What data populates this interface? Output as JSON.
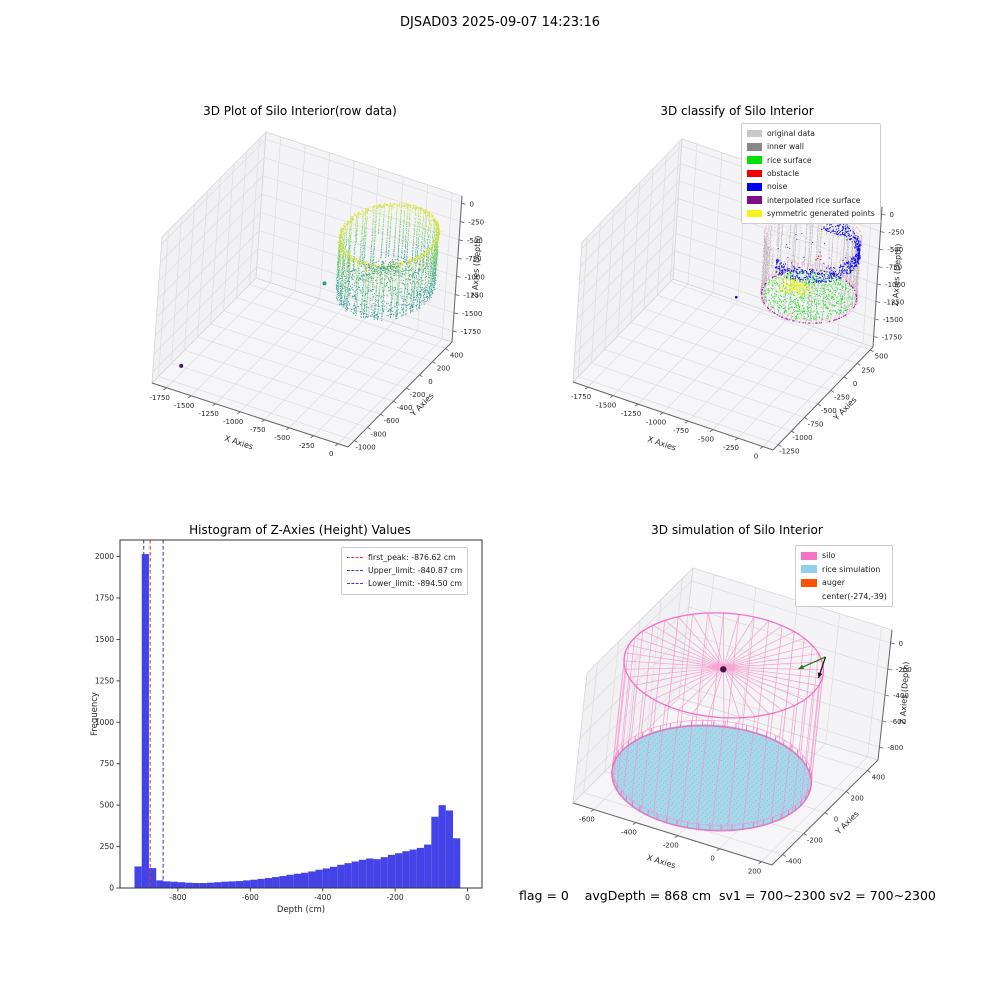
{
  "figure": {
    "title": "DJSAD03 2025-09-07 14:23:16",
    "footer": "flag = 0    avgDepth = 868 cm  sv1 = 700~2300 sv2 = 700~2300"
  },
  "chart_data": [
    {
      "id": "raw",
      "type": "scatter3d",
      "title": "3D Plot of Silo Interior(row data)",
      "xlabel": "X Axies",
      "ylabel": "Y Axies",
      "zlabel": "Z Axies (Depth)",
      "xlim": [
        -1900,
        100
      ],
      "ylim": [
        -1100,
        500
      ],
      "zlim": [
        -1900,
        100
      ],
      "xticks": [
        -1750,
        -1500,
        -1250,
        -1000,
        -750,
        -500,
        -250,
        0
      ],
      "yticks": [
        -1000,
        -800,
        -600,
        -400,
        -200,
        0,
        200,
        400
      ],
      "zticks": [
        0,
        -250,
        -500,
        -750,
        -1000,
        -1250,
        -1500,
        -1750
      ],
      "colormap": "viridis",
      "cmap_range": [
        -1750,
        0
      ],
      "cylinder": {
        "cx": -274,
        "cy": -39,
        "r": 420,
        "z_top": -90,
        "z_bottom": -870
      },
      "outliers": [
        {
          "x": -1650,
          "y": -1050,
          "z": -1600,
          "color": "#46155e"
        },
        {
          "x": -760,
          "y": -250,
          "z": -800,
          "color": "#2e9e87"
        }
      ]
    },
    {
      "id": "classify",
      "type": "scatter3d",
      "title": "3D classify of Silo Interior",
      "xlabel": "X Axies",
      "ylabel": "Y Axies",
      "zlabel": "Z Axies (Depth)",
      "xlim": [
        -1900,
        100
      ],
      "ylim": [
        -1350,
        550
      ],
      "zlim": [
        -1900,
        100
      ],
      "xticks": [
        -1750,
        -1500,
        -1250,
        -1000,
        -750,
        -500,
        -250,
        0
      ],
      "yticks": [
        -1250,
        -1000,
        -750,
        -500,
        -250,
        0,
        250,
        500
      ],
      "zticks": [
        0,
        -250,
        -500,
        -750,
        -1000,
        -1250,
        -1500,
        -1750
      ],
      "legend": [
        {
          "label": "original data",
          "color": "#c8c8c8"
        },
        {
          "label": "inner wall",
          "color": "#888888"
        },
        {
          "label": "rice surface",
          "color": "#00e100"
        },
        {
          "label": "obstacle",
          "color": "#f10000"
        },
        {
          "label": "noise",
          "color": "#0202f0"
        },
        {
          "label": "interpolated rice surface",
          "color": "#7d0f8a"
        },
        {
          "label": "symmetric generated points",
          "color": "#f7f218"
        }
      ],
      "cylinder": {
        "cx": -274,
        "cy": -39,
        "r": 420,
        "z_top": -60,
        "z_bottom": -885
      },
      "noise_outlier": {
        "x": -576,
        "y": -892,
        "z": -400
      }
    },
    {
      "id": "histogram",
      "type": "bar",
      "title": "Histogram of Z-Axies (Height) Values",
      "xlabel": "Depth (cm)",
      "ylabel": "Frequency",
      "xlim": [
        -960,
        40
      ],
      "ylim": [
        0,
        2100
      ],
      "xticks": [
        -800,
        -600,
        -400,
        -200,
        0
      ],
      "yticks": [
        0,
        250,
        500,
        750,
        1000,
        1250,
        1500,
        1750,
        2000
      ],
      "bar_color": "#4343e8",
      "bin_width": 20,
      "bin_start": -920,
      "frequencies": [
        130,
        2015,
        120,
        46,
        40,
        38,
        35,
        32,
        30,
        30,
        32,
        35,
        38,
        40,
        42,
        46,
        50,
        55,
        60,
        66,
        72,
        80,
        86,
        92,
        100,
        110,
        118,
        128,
        140,
        150,
        160,
        170,
        178,
        174,
        186,
        200,
        210,
        222,
        232,
        242,
        262,
        430,
        500,
        468,
        300
      ],
      "vlines": [
        {
          "label": "first_peak: -876.62 cm",
          "x": -876.62,
          "color": "#e03a3a"
        },
        {
          "label": "Upper_limit: -840.87 cm",
          "x": -840.87,
          "color": "#3c3cd9"
        },
        {
          "label": "Lower_limit: -894.50 cm",
          "x": -894.5,
          "color": "#3c3cd9"
        }
      ]
    },
    {
      "id": "simulation",
      "type": "wireframe3d",
      "title": "3D simulation of Silo Interior",
      "xlabel": "X Axies",
      "ylabel": "Y Axies",
      "zlabel": "Z Axies (Depth)",
      "xlim": [
        -700,
        250
      ],
      "ylim": [
        -500,
        500
      ],
      "zlim": [
        -900,
        100
      ],
      "xticks": [
        -600,
        -400,
        -200,
        0,
        200
      ],
      "yticks": [
        -400,
        -200,
        0,
        200,
        400
      ],
      "zticks": [
        0,
        -200,
        -400,
        -600,
        -800
      ],
      "legend": [
        {
          "label": "silo",
          "color": "#f673c5"
        },
        {
          "label": "rice simulation",
          "color": "#8ed1e9"
        },
        {
          "label": "auger",
          "color": "#ff5005"
        },
        {
          "label": "center(-274,-39)",
          "color": null
        }
      ],
      "silo": {
        "cx": -274,
        "cy": -39,
        "r": 425,
        "z_top": 0,
        "z_bottom": -868
      },
      "rice_z": -862,
      "wire_color": "#f78fc8",
      "rim_color": "#f465bd",
      "rice_fill": "#a6d7ec",
      "rice_dot": "#69a8c7",
      "center_dot_color": "#471347",
      "marker": {
        "x": 30,
        "y": 230,
        "z": -30
      }
    }
  ]
}
